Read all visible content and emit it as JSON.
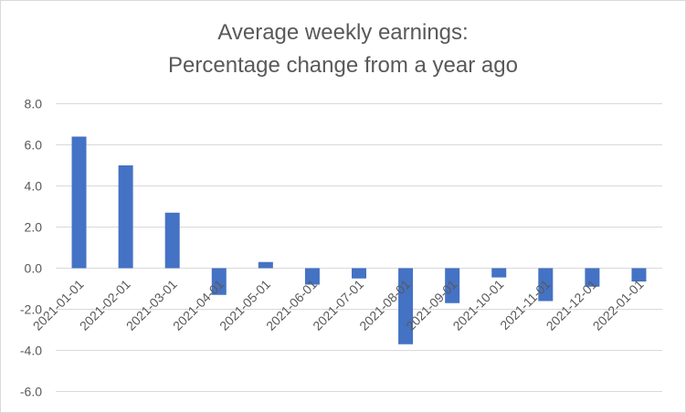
{
  "chart_data": {
    "type": "bar",
    "title_lines": [
      "Average weekly earnings:",
      "Percentage change from a year ago"
    ],
    "categories": [
      "2021-01-01",
      "2021-02-01",
      "2021-03-01",
      "2021-04-01",
      "2021-05-01",
      "2021-06-01",
      "2021-07-01",
      "2021-08-01",
      "2021-09-01",
      "2021-10-01",
      "2021-11-01",
      "2021-12-01",
      "2022-01-01"
    ],
    "series": [
      {
        "values": [
          6.4,
          5.0,
          2.7,
          -1.3,
          0.3,
          -0.8,
          -0.5,
          -3.7,
          -1.7,
          -0.45,
          -1.6,
          -0.9,
          -0.65
        ],
        "color": "#4472c4"
      }
    ],
    "xlabel": "",
    "ylabel": "",
    "ylim": [
      -6,
      8
    ],
    "yticks": [
      8,
      6,
      4,
      2,
      0,
      -2,
      -4,
      -6
    ],
    "ytick_labels": [
      "8.0",
      "6.0",
      "4.0",
      "2.0",
      "0.0",
      "-2.0",
      "-4.0",
      "-6.0"
    ],
    "grid": true,
    "legend": "none",
    "colors": {
      "bar": "#4472c4",
      "grid": "#d9d9d9",
      "text": "#595959"
    }
  }
}
